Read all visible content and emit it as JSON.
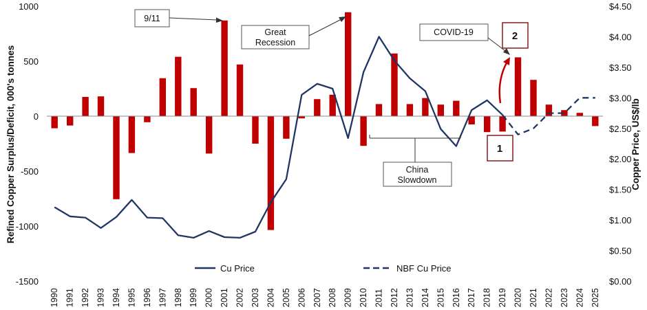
{
  "chart_data": {
    "type": "bar",
    "categories": [
      "1990",
      "1991",
      "1992",
      "1993",
      "1994",
      "1995",
      "1996",
      "1997",
      "1998",
      "1999",
      "2000",
      "2001",
      "2002",
      "2003",
      "2004",
      "2005",
      "2006",
      "2007",
      "2008",
      "2009",
      "2010",
      "2011",
      "2012",
      "2013",
      "2014",
      "2015",
      "2016",
      "2017",
      "2018",
      "2019",
      "2020",
      "2021",
      "2022",
      "2023",
      "2024",
      "2025"
    ],
    "series": [
      {
        "name": "Refined Copper Surplus/Deficit",
        "axis": "left",
        "type": "bar",
        "color": "#c00000",
        "values": [
          -110,
          -85,
          175,
          180,
          -755,
          -335,
          -55,
          345,
          540,
          255,
          -340,
          870,
          470,
          -250,
          -1035,
          -205,
          -20,
          155,
          195,
          945,
          -270,
          110,
          570,
          110,
          165,
          105,
          140,
          -75,
          -145,
          -140,
          535,
          330,
          105,
          55,
          30,
          -90
        ]
      },
      {
        "name": "Cu Price",
        "axis": "right",
        "type": "line",
        "style": "solid",
        "color": "#1f3664",
        "x": [
          "1990",
          "1991",
          "1992",
          "1993",
          "1994",
          "1995",
          "1996",
          "1997",
          "1998",
          "1999",
          "2000",
          "2001",
          "2002",
          "2003",
          "2004",
          "2005",
          "2006",
          "2007",
          "2008",
          "2009",
          "2010",
          "2011",
          "2012",
          "2013",
          "2014",
          "2015",
          "2016",
          "2017",
          "2018",
          "2019",
          "2020"
        ],
        "values": [
          1.21,
          1.06,
          1.04,
          0.87,
          1.05,
          1.33,
          1.04,
          1.03,
          0.75,
          0.71,
          0.82,
          0.72,
          0.71,
          0.81,
          1.29,
          1.67,
          3.05,
          3.23,
          3.15,
          2.34,
          3.42,
          4.0,
          3.61,
          3.32,
          3.11,
          2.49,
          2.21,
          2.8,
          2.96,
          2.72,
          null
        ]
      },
      {
        "name": "NBF Cu Price",
        "axis": "right",
        "type": "line",
        "style": "dashed",
        "color": "#1f3664",
        "x": [
          "2019",
          "2020",
          "2021",
          "2022",
          "2023",
          "2024",
          "2025"
        ],
        "values": [
          2.72,
          2.4,
          2.5,
          2.75,
          2.75,
          3.0,
          3.0
        ]
      }
    ],
    "title": "",
    "xlabel": "",
    "ylabel": "Refined Copper Surplus/Deficit, 000's tonnes",
    "ylabel_right": "Copper Price, US$/lb",
    "ylim": [
      -1500,
      1000
    ],
    "ylim_right": [
      0,
      4.5
    ],
    "yticks": [
      "1000",
      "500",
      "0",
      "-500",
      "-1000",
      "-1500"
    ],
    "yticks_right": [
      "$4.50",
      "$4.00",
      "$3.50",
      "$3.00",
      "$2.50",
      "$2.00",
      "$1.50",
      "$1.00",
      "$0.50",
      "$0.00"
    ],
    "legend": {
      "position": "bottom",
      "items": [
        "Cu Price",
        "NBF Cu Price"
      ]
    },
    "annotations": {
      "nine_eleven": "9/11",
      "great_recession_1": "Great",
      "great_recession_2": "Recession",
      "china_1": "China",
      "china_2": "Slowdown",
      "covid": "COVID-19",
      "marker_1": "1",
      "marker_2": "2"
    }
  }
}
